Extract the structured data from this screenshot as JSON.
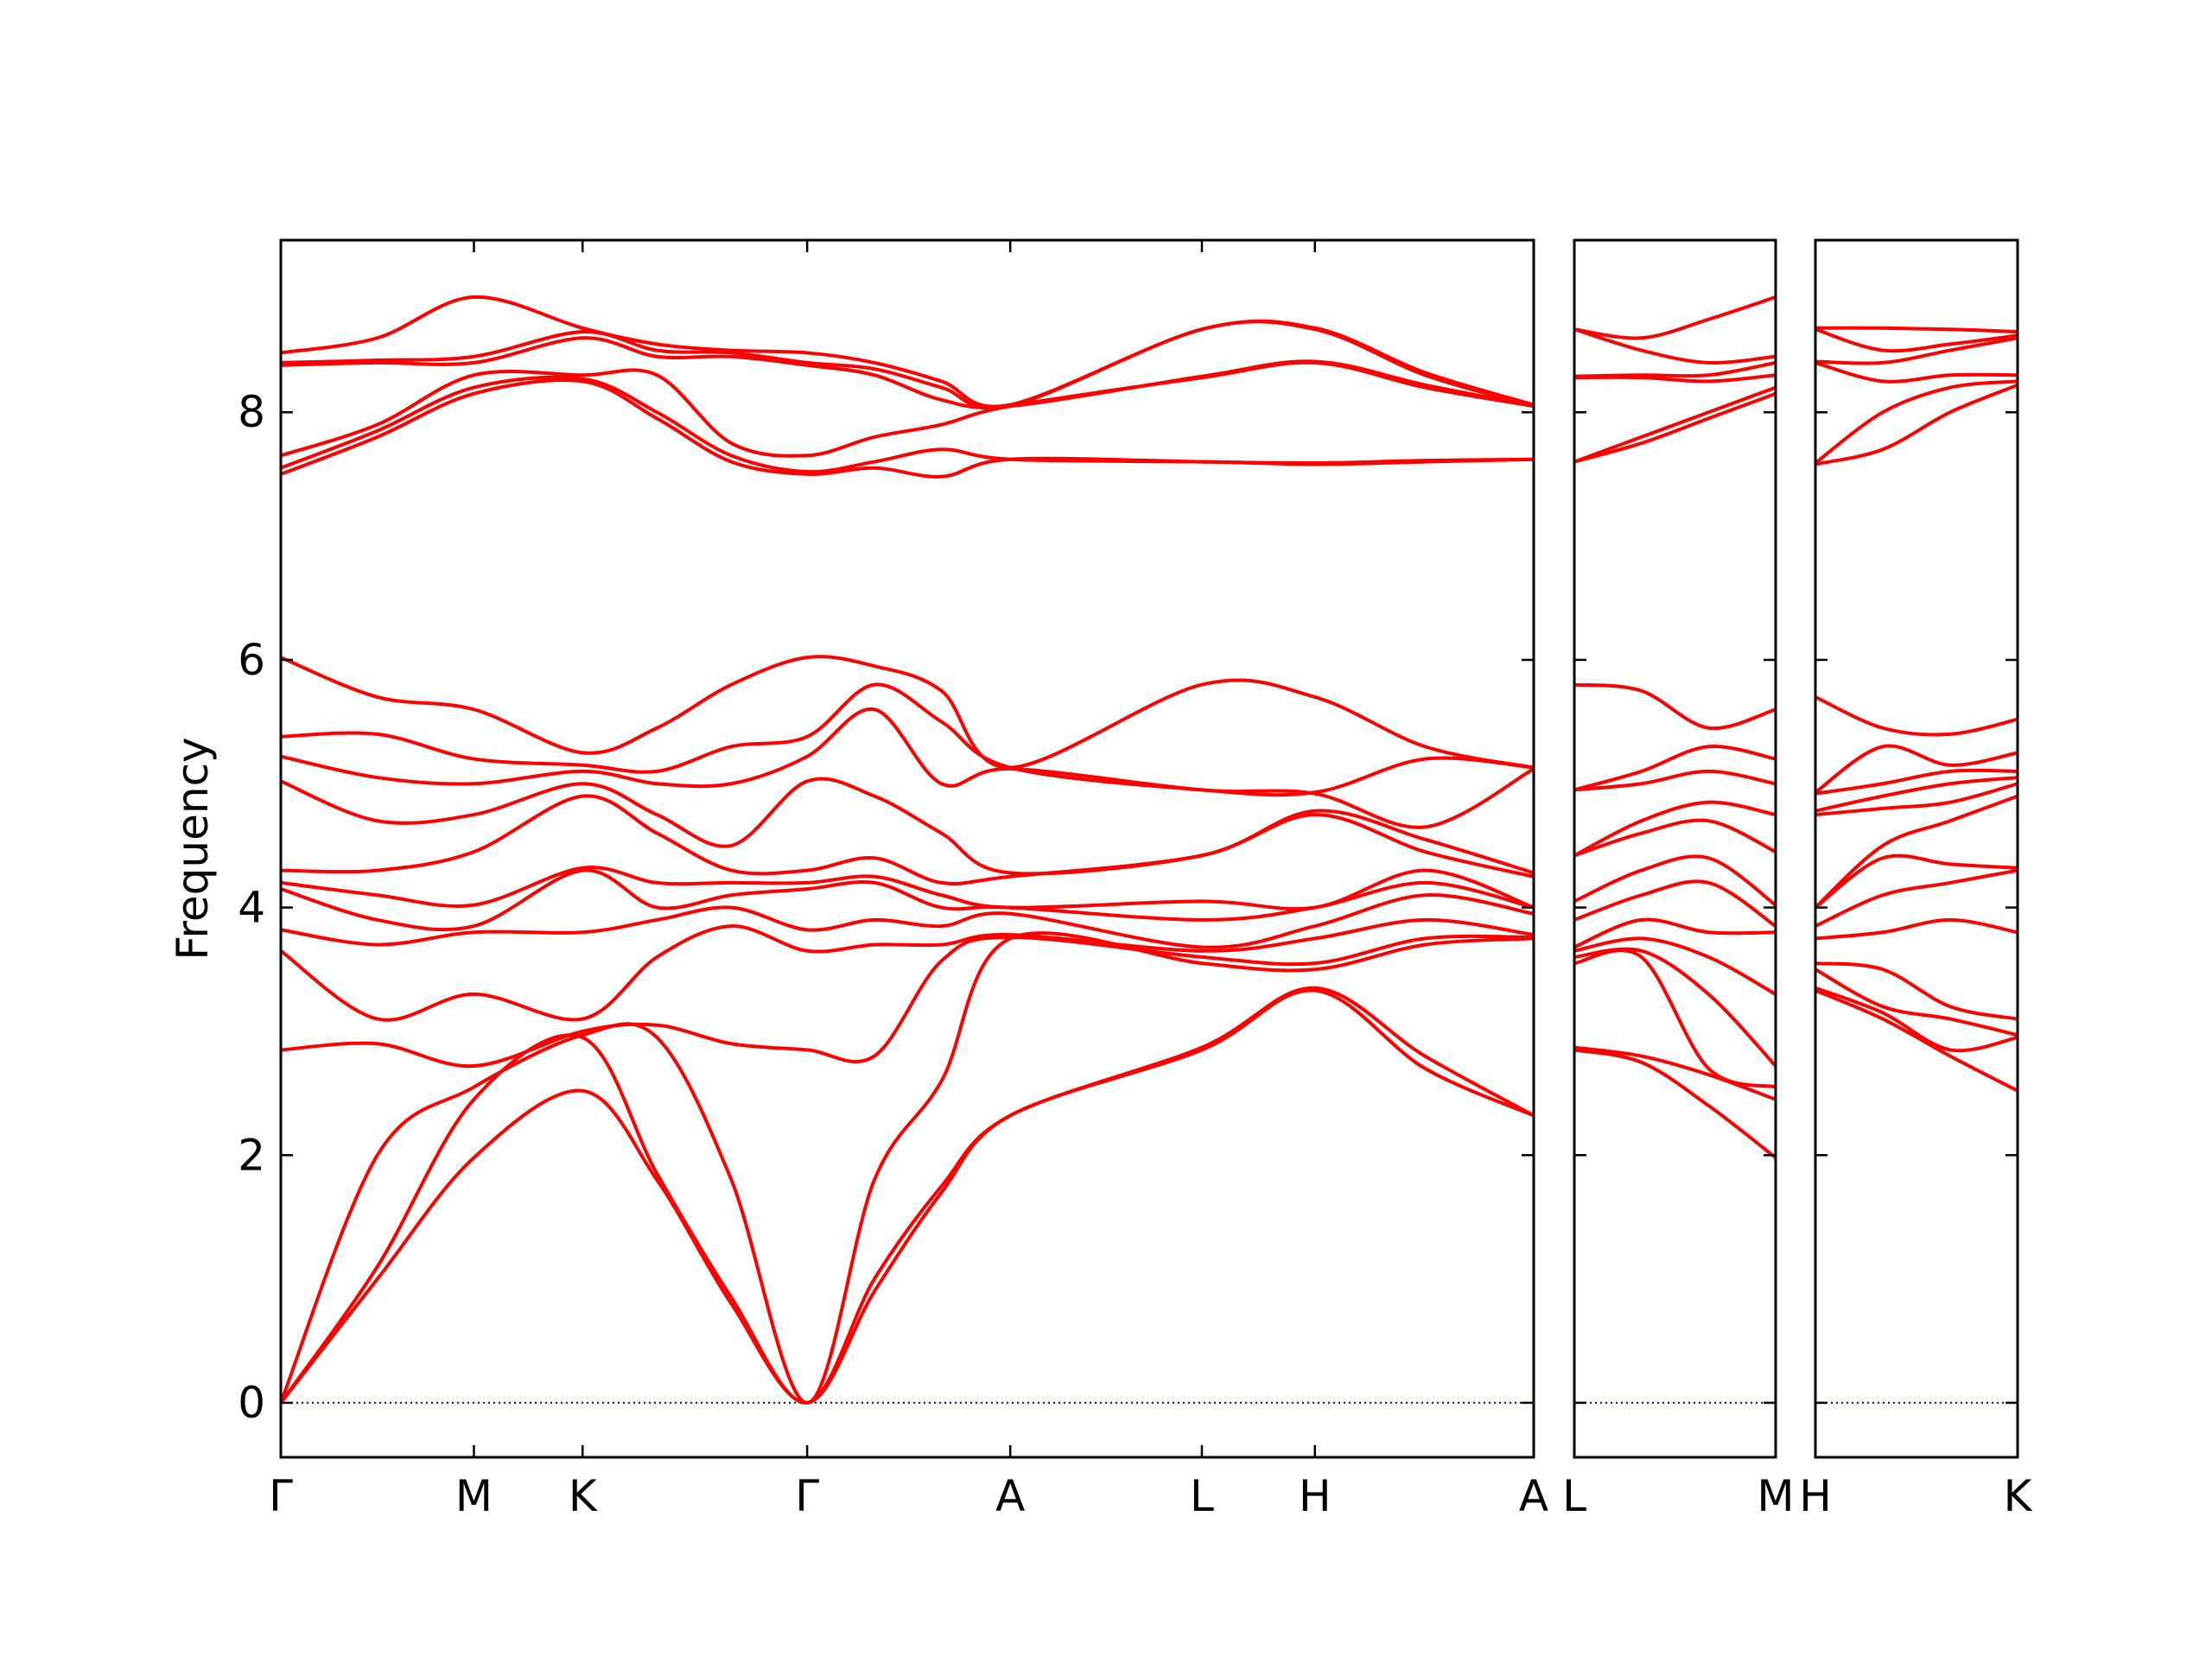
{
  "chart_data": [
    {
      "type": "line",
      "ylabel": "Frequency",
      "color": "#ff0000",
      "show_ytick_labels": true,
      "xlim": [
        0,
        8.76
      ],
      "ylim": [
        -0.44,
        9.39
      ],
      "yticks": [
        0,
        2,
        4,
        6,
        8
      ],
      "xticks": [
        {
          "value": 0,
          "label": "Γ"
        },
        {
          "value": 1.35,
          "label": "M"
        },
        {
          "value": 2.11,
          "label": "K"
        },
        {
          "value": 3.68,
          "label": "Γ"
        },
        {
          "value": 5.1,
          "label": "A"
        },
        {
          "value": 6.44,
          "label": "L"
        },
        {
          "value": 7.23,
          "label": "H"
        },
        {
          "value": 8.76,
          "label": "A"
        }
      ],
      "hline": {
        "y": 0,
        "color": "#0000cc"
      },
      "x": [
        0,
        0.675,
        1.35,
        2.11,
        2.63,
        3.15,
        3.68,
        4.15,
        4.62,
        5.1,
        6.44,
        7.23,
        8.0,
        8.76
      ],
      "series": [
        {
          "values": [
            0,
            1.0,
            1.98,
            2.52,
            1.8,
            0.8,
            0,
            0.9,
            1.7,
            2.32,
            2.85,
            3.33,
            2.7,
            2.32
          ]
        },
        {
          "values": [
            0,
            1.1,
            2.45,
            2.95,
            1.85,
            0.85,
            0,
            1.0,
            1.75,
            2.32,
            2.87,
            3.35,
            2.8,
            2.32
          ]
        },
        {
          "values": [
            0,
            2.0,
            2.55,
            2.97,
            2.95,
            1.8,
            0,
            1.8,
            2.6,
            3.75,
            3.55,
            3.5,
            3.7,
            3.75
          ]
        },
        {
          "values": [
            2.85,
            2.9,
            2.72,
            3.0,
            3.05,
            2.9,
            2.85,
            2.8,
            3.57,
            3.76,
            3.6,
            3.55,
            3.75,
            3.76
          ]
        },
        {
          "values": [
            3.65,
            3.1,
            3.3,
            3.1,
            3.6,
            3.85,
            3.65,
            3.7,
            3.7,
            3.78,
            3.65,
            3.75,
            3.9,
            3.78
          ]
        },
        {
          "values": [
            3.82,
            3.7,
            3.8,
            3.8,
            3.9,
            4.0,
            3.82,
            3.9,
            3.85,
            3.95,
            3.68,
            3.85,
            4.1,
            3.95
          ]
        },
        {
          "values": [
            4.15,
            3.9,
            3.85,
            4.3,
            4.0,
            4.1,
            4.15,
            4.2,
            4.0,
            4.0,
            3.9,
            4.0,
            4.2,
            4.0
          ]
        },
        {
          "values": [
            4.2,
            4.1,
            4.02,
            4.32,
            4.2,
            4.2,
            4.2,
            4.25,
            4.1,
            4.0,
            4.05,
            4.0,
            4.3,
            4.0
          ]
        },
        {
          "values": [
            4.3,
            4.3,
            4.45,
            4.9,
            4.6,
            4.3,
            4.3,
            4.4,
            4.2,
            4.25,
            4.42,
            4.75,
            4.45,
            4.25
          ]
        },
        {
          "values": [
            5.02,
            4.7,
            4.75,
            5.0,
            4.75,
            4.5,
            5.02,
            4.9,
            4.6,
            4.28,
            4.42,
            4.78,
            4.55,
            4.28
          ]
        },
        {
          "values": [
            5.22,
            5.05,
            5.0,
            5.1,
            5.0,
            5.0,
            5.22,
            5.6,
            5.0,
            5.12,
            4.95,
            4.92,
            4.65,
            5.12
          ]
        },
        {
          "values": [
            5.38,
            5.4,
            5.2,
            5.15,
            5.1,
            5.3,
            5.38,
            5.8,
            5.5,
            5.13,
            4.95,
            4.93,
            5.2,
            5.13
          ]
        },
        {
          "values": [
            6.02,
            5.7,
            5.6,
            5.25,
            5.45,
            5.8,
            6.02,
            5.95,
            5.75,
            5.13,
            5.8,
            5.7,
            5.3,
            5.13
          ]
        },
        {
          "values": [
            7.5,
            7.8,
            8.15,
            8.25,
            7.95,
            7.6,
            7.5,
            7.55,
            7.48,
            7.62,
            7.6,
            7.58,
            7.6,
            7.62
          ]
        },
        {
          "values": [
            7.55,
            7.85,
            8.2,
            8.27,
            8.0,
            7.65,
            7.52,
            7.6,
            7.7,
            7.62,
            7.6,
            7.59,
            7.61,
            7.62
          ]
        },
        {
          "values": [
            7.65,
            7.9,
            8.3,
            8.3,
            8.3,
            7.75,
            7.65,
            7.8,
            7.9,
            8.05,
            8.28,
            8.4,
            8.2,
            8.05
          ]
        },
        {
          "values": [
            8.38,
            8.4,
            8.4,
            8.6,
            8.45,
            8.45,
            8.38,
            8.3,
            8.1,
            8.05,
            8.29,
            8.41,
            8.22,
            8.05
          ]
        },
        {
          "values": [
            8.4,
            8.42,
            8.45,
            8.65,
            8.5,
            8.48,
            8.4,
            8.35,
            8.2,
            8.05,
            8.67,
            8.67,
            8.3,
            8.05
          ]
        },
        {
          "values": [
            8.48,
            8.6,
            8.93,
            8.68,
            8.55,
            8.5,
            8.48,
            8.4,
            8.25,
            8.06,
            8.67,
            8.68,
            8.32,
            8.06
          ]
        }
      ]
    },
    {
      "type": "line",
      "color": "#ff0000",
      "show_ytick_labels": false,
      "xlim": [
        0,
        1.41
      ],
      "ylim": [
        -0.44,
        9.39
      ],
      "yticks": [
        0,
        2,
        4,
        6,
        8
      ],
      "xticks": [
        {
          "value": 0,
          "label": "L"
        },
        {
          "value": 1.41,
          "label": "M"
        }
      ],
      "hline": {
        "y": 0,
        "color": "#0000cc"
      },
      "x": [
        0,
        0.47,
        0.94,
        1.41
      ],
      "series": [
        {
          "values": [
            2.85,
            2.75,
            2.4,
            1.98
          ]
        },
        {
          "values": [
            2.87,
            2.8,
            2.65,
            2.45
          ]
        },
        {
          "values": [
            3.55,
            3.6,
            2.7,
            2.55
          ]
        },
        {
          "values": [
            3.6,
            3.65,
            3.3,
            2.72
          ]
        },
        {
          "values": [
            3.65,
            3.75,
            3.6,
            3.3
          ]
        },
        {
          "values": [
            3.68,
            3.9,
            3.8,
            3.8
          ]
        },
        {
          "values": [
            3.9,
            4.1,
            4.2,
            3.85
          ]
        },
        {
          "values": [
            4.05,
            4.3,
            4.4,
            4.02
          ]
        },
        {
          "values": [
            4.42,
            4.6,
            4.7,
            4.45
          ]
        },
        {
          "values": [
            4.42,
            4.7,
            4.85,
            4.75
          ]
        },
        {
          "values": [
            4.95,
            5.0,
            5.1,
            5.0
          ]
        },
        {
          "values": [
            4.95,
            5.1,
            5.3,
            5.2
          ]
        },
        {
          "values": [
            5.8,
            5.75,
            5.45,
            5.6
          ]
        },
        {
          "values": [
            7.6,
            7.75,
            7.95,
            8.15
          ]
        },
        {
          "values": [
            7.6,
            7.8,
            8.0,
            8.2
          ]
        },
        {
          "values": [
            8.28,
            8.28,
            8.25,
            8.3
          ]
        },
        {
          "values": [
            8.29,
            8.3,
            8.3,
            8.4
          ]
        },
        {
          "values": [
            8.67,
            8.5,
            8.4,
            8.45
          ]
        },
        {
          "values": [
            8.67,
            8.6,
            8.75,
            8.93
          ]
        }
      ]
    },
    {
      "type": "line",
      "color": "#ff0000",
      "show_ytick_labels": false,
      "xlim": [
        0,
        1.41
      ],
      "ylim": [
        -0.44,
        9.39
      ],
      "yticks": [
        0,
        2,
        4,
        6,
        8
      ],
      "xticks": [
        {
          "value": 0,
          "label": "H"
        },
        {
          "value": 1.41,
          "label": "K"
        }
      ],
      "hline": {
        "y": 0,
        "color": "#0000cc"
      },
      "x": [
        0,
        0.47,
        0.94,
        1.41
      ],
      "series": [
        {
          "values": [
            3.33,
            3.1,
            2.8,
            2.52
          ]
        },
        {
          "values": [
            3.35,
            3.15,
            2.85,
            2.95
          ]
        },
        {
          "values": [
            3.5,
            3.2,
            3.1,
            2.97
          ]
        },
        {
          "values": [
            3.55,
            3.5,
            3.2,
            3.1
          ]
        },
        {
          "values": [
            3.75,
            3.8,
            3.9,
            3.8
          ]
        },
        {
          "values": [
            3.85,
            4.1,
            4.2,
            4.3
          ]
        },
        {
          "values": [
            4.0,
            4.4,
            4.35,
            4.32
          ]
        },
        {
          "values": [
            4.0,
            4.5,
            4.7,
            4.9
          ]
        },
        {
          "values": [
            4.75,
            4.8,
            4.85,
            5.0
          ]
        },
        {
          "values": [
            4.78,
            4.9,
            5.0,
            5.05
          ]
        },
        {
          "values": [
            4.92,
            5.0,
            5.1,
            5.1
          ]
        },
        {
          "values": [
            4.93,
            5.3,
            5.15,
            5.25
          ]
        },
        {
          "values": [
            5.7,
            5.45,
            5.4,
            5.52
          ]
        },
        {
          "values": [
            7.58,
            7.7,
            8.0,
            8.22
          ]
        },
        {
          "values": [
            7.59,
            8.0,
            8.2,
            8.25
          ]
        },
        {
          "values": [
            8.4,
            8.25,
            8.3,
            8.3
          ]
        },
        {
          "values": [
            8.41,
            8.4,
            8.5,
            8.6
          ]
        },
        {
          "values": [
            8.67,
            8.5,
            8.55,
            8.62
          ]
        },
        {
          "values": [
            8.68,
            8.68,
            8.67,
            8.65
          ]
        }
      ]
    }
  ]
}
